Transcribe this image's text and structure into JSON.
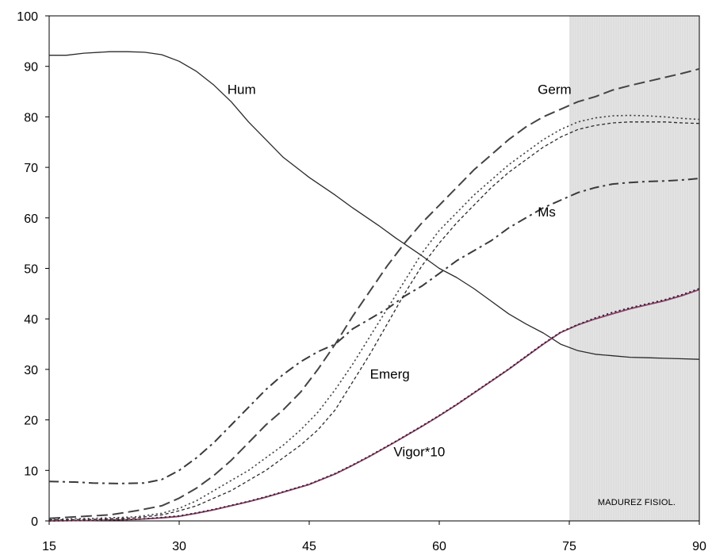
{
  "chart_data": {
    "type": "line",
    "title": "",
    "xlabel": "",
    "ylabel": "",
    "xlim": [
      15,
      90
    ],
    "ylim": [
      0,
      100
    ],
    "xticks": [
      15,
      30,
      45,
      60,
      75,
      90
    ],
    "yticks": [
      0,
      10,
      20,
      30,
      40,
      50,
      60,
      70,
      80,
      90,
      100
    ],
    "grid": false,
    "legend": "none",
    "shaded_region": {
      "x": [
        75,
        90
      ],
      "label": "MADUREZ FISIOL.",
      "color": "#e4e4e4"
    },
    "series": [
      {
        "name": "Hum",
        "style": "solid",
        "color": "#2a2a2a",
        "x": [
          15,
          17,
          19,
          22,
          24,
          26,
          28,
          30,
          32,
          34,
          36,
          38,
          40,
          42,
          45,
          48,
          50,
          53,
          55,
          58,
          60,
          62,
          64,
          66,
          68,
          70,
          72,
          74,
          76,
          78,
          80,
          82,
          84,
          86,
          88,
          90
        ],
        "y": [
          92.2,
          92.2,
          92.6,
          92.9,
          92.9,
          92.8,
          92.3,
          91.0,
          89.0,
          86.3,
          83.0,
          79.0,
          75.5,
          72.0,
          68.0,
          64.5,
          62.0,
          58.5,
          56.0,
          52.5,
          50.0,
          48.2,
          46.0,
          43.5,
          41.0,
          39.0,
          37.2,
          35.0,
          33.7,
          33.0,
          32.7,
          32.4,
          32.3,
          32.2,
          32.1,
          32.0
        ]
      },
      {
        "name": "Germ",
        "style": "long-dash",
        "color": "#444444",
        "x": [
          15,
          18,
          20,
          22,
          25,
          28,
          30,
          32,
          34,
          36,
          38,
          40,
          42,
          44,
          46,
          48,
          50,
          52,
          54,
          56,
          58,
          60,
          62,
          64,
          66,
          68,
          70,
          72,
          74,
          76,
          78,
          80,
          82,
          84,
          86,
          88,
          90
        ],
        "y": [
          0.5,
          0.8,
          1.0,
          1.2,
          2.0,
          3.0,
          4.5,
          6.5,
          9.0,
          12.0,
          15.5,
          19.0,
          22.0,
          25.5,
          30.0,
          35.0,
          40.5,
          45.5,
          50.5,
          55.0,
          59.0,
          62.5,
          66.0,
          69.5,
          72.5,
          75.5,
          78.0,
          80.0,
          81.5,
          83.0,
          84.0,
          85.3,
          86.2,
          87.0,
          87.8,
          88.6,
          89.5
        ]
      },
      {
        "name": "",
        "style": "dotted",
        "color": "#444444",
        "x": [
          15,
          20,
          25,
          28,
          30,
          32,
          34,
          36,
          38,
          40,
          42,
          44,
          46,
          48,
          50,
          52,
          54,
          56,
          58,
          60,
          62,
          64,
          66,
          68,
          70,
          72,
          74,
          76,
          78,
          80,
          82,
          84,
          86,
          88,
          90
        ],
        "y": [
          0.3,
          0.5,
          0.8,
          1.5,
          2.5,
          4.0,
          6.0,
          8.0,
          10.0,
          12.5,
          15.0,
          18.0,
          21.5,
          26.0,
          31.0,
          36.5,
          42.0,
          47.5,
          53.0,
          57.5,
          61.0,
          64.5,
          67.5,
          70.5,
          73.0,
          75.5,
          77.5,
          79.0,
          79.8,
          80.2,
          80.3,
          80.2,
          80.0,
          79.7,
          79.5
        ]
      },
      {
        "name": "Ms",
        "style": "dash-dot",
        "color": "#3a3a3a",
        "x": [
          15,
          18,
          20,
          23,
          26,
          28,
          30,
          32,
          34,
          36,
          38,
          40,
          42,
          44,
          46,
          48,
          50,
          52,
          54,
          56,
          58,
          60,
          62,
          64,
          66,
          68,
          70,
          72,
          74,
          76,
          78,
          80,
          82,
          84,
          86,
          88,
          90
        ],
        "y": [
          7.8,
          7.7,
          7.5,
          7.4,
          7.5,
          8.2,
          10.0,
          12.5,
          15.5,
          19.0,
          22.5,
          26.0,
          29.0,
          31.5,
          33.5,
          35.0,
          38.0,
          40.0,
          42.0,
          44.5,
          46.5,
          49.0,
          51.5,
          53.5,
          55.5,
          58.0,
          60.0,
          62.0,
          63.5,
          65.0,
          66.0,
          66.7,
          67.0,
          67.2,
          67.3,
          67.5,
          67.8
        ]
      },
      {
        "name": "Emerg",
        "style": "fine-dash",
        "color": "#2a2a2a",
        "x": [
          15,
          20,
          25,
          28,
          30,
          32,
          34,
          36,
          38,
          40,
          42,
          44,
          46,
          48,
          50,
          52,
          54,
          56,
          58,
          60,
          62,
          64,
          66,
          68,
          70,
          72,
          74,
          76,
          78,
          80,
          82,
          84,
          86,
          88,
          90
        ],
        "y": [
          0.2,
          0.3,
          0.6,
          1.2,
          2.0,
          3.0,
          4.5,
          6.0,
          8.0,
          10.0,
          12.5,
          15.0,
          18.0,
          22.0,
          27.5,
          33.0,
          39.0,
          45.0,
          50.5,
          55.0,
          59.0,
          62.5,
          66.0,
          69.0,
          71.5,
          74.0,
          76.0,
          77.5,
          78.3,
          78.8,
          79.0,
          79.0,
          79.0,
          78.8,
          78.7
        ]
      },
      {
        "name": "Vigor*10",
        "style": "solid",
        "color": "#8e3a6a",
        "x": [
          15,
          20,
          25,
          28,
          30,
          32,
          34,
          36,
          38,
          40,
          42,
          45,
          48,
          50,
          52,
          55,
          58,
          60,
          62,
          65,
          68,
          70,
          72,
          74,
          76,
          78,
          80,
          82,
          84,
          86,
          88,
          90
        ],
        "y": [
          0.0,
          0.1,
          0.3,
          0.6,
          0.9,
          1.5,
          2.2,
          3.0,
          3.8,
          4.7,
          5.7,
          7.2,
          9.3,
          11.0,
          12.8,
          15.7,
          18.7,
          20.8,
          23.0,
          26.5,
          30.0,
          32.5,
          35.0,
          37.3,
          38.8,
          40.0,
          41.0,
          42.0,
          42.8,
          43.6,
          44.6,
          45.8
        ]
      },
      {
        "name": "",
        "style": "dotted",
        "color": "#222222",
        "x": [
          15,
          20,
          25,
          28,
          30,
          32,
          34,
          36,
          38,
          40,
          42,
          45,
          48,
          50,
          52,
          55,
          58,
          60,
          62,
          65,
          68,
          70,
          72,
          74,
          76,
          78,
          80,
          82,
          84,
          86,
          88,
          90
        ],
        "y": [
          0.0,
          0.1,
          0.3,
          0.7,
          1.0,
          1.6,
          2.3,
          3.1,
          3.9,
          4.8,
          5.8,
          7.3,
          9.4,
          11.1,
          12.9,
          15.8,
          18.8,
          20.9,
          23.1,
          26.6,
          30.1,
          32.6,
          35.1,
          37.4,
          38.9,
          40.2,
          41.3,
          42.2,
          43.0,
          43.8,
          44.8,
          46.0
        ]
      }
    ],
    "annotations": [
      {
        "text": "Hum",
        "x": 37.2,
        "y": 84.5
      },
      {
        "text": "Germ",
        "x": 73.3,
        "y": 84.5
      },
      {
        "text": "Ms",
        "x": 72.4,
        "y": 60.3
      },
      {
        "text": "Emerg",
        "x": 54.3,
        "y": 28.2
      },
      {
        "text": "Vigor*10",
        "x": 57.7,
        "y": 12.8
      }
    ]
  }
}
